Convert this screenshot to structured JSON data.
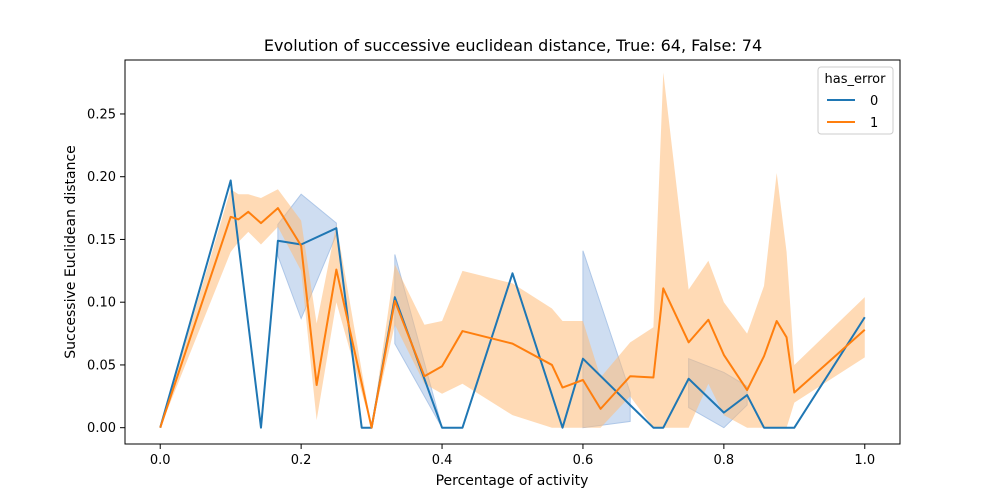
{
  "chart_data": {
    "type": "line",
    "title": "Evolution of successive euclidean distance, True: 64, False: 74",
    "xlabel": "Percentage of activity",
    "ylabel": "Successive Euclidean distance",
    "xlim": [
      -0.05,
      1.05
    ],
    "ylim": [
      -0.013,
      0.293
    ],
    "xticks": [
      0.0,
      0.2,
      0.4,
      0.6,
      0.8,
      1.0
    ],
    "xtick_labels": [
      "0.0",
      "0.2",
      "0.4",
      "0.6",
      "0.8",
      "1.0"
    ],
    "yticks": [
      0.0,
      0.05,
      0.1,
      0.15,
      0.2,
      0.25
    ],
    "ytick_labels": [
      "0.00",
      "0.05",
      "0.10",
      "0.15",
      "0.20",
      "0.25"
    ],
    "grid": false,
    "legend": {
      "title": "has_error",
      "placement": "top-right",
      "entries": [
        "0",
        "1"
      ]
    },
    "series": [
      {
        "name": "0",
        "color": "#1f77b4",
        "band_color": "#aec7e8",
        "x": [
          0.0,
          0.1,
          0.143,
          0.167,
          0.2,
          0.25,
          0.286,
          0.3,
          0.333,
          0.4,
          0.429,
          0.5,
          0.571,
          0.6,
          0.667,
          0.7,
          0.714,
          0.75,
          0.8,
          0.833,
          0.857,
          0.9,
          1.0
        ],
        "y": [
          0.0,
          0.197,
          0.0,
          0.149,
          0.146,
          0.159,
          0.0,
          0.0,
          0.104,
          0.0,
          0.0,
          0.123,
          0.0,
          0.055,
          0.018,
          0.0,
          0.0,
          0.039,
          0.012,
          0.026,
          0.0,
          0.0,
          0.088
        ],
        "ci_segments": [
          {
            "x": [
              0.167,
              0.2,
              0.25
            ],
            "lower": [
              0.137,
              0.087,
              0.154
            ],
            "upper": [
              0.162,
              0.186,
              0.163
            ]
          },
          {
            "x": [
              0.333,
              0.4
            ],
            "lower": [
              0.067,
              0.0
            ],
            "upper": [
              0.138,
              0.0
            ]
          },
          {
            "x": [
              0.6,
              0.667
            ],
            "lower": [
              0.0,
              0.005
            ],
            "upper": [
              0.141,
              0.028
            ]
          },
          {
            "x": [
              0.75,
              0.8,
              0.833
            ],
            "lower": [
              0.016,
              0.0,
              0.018
            ],
            "upper": [
              0.055,
              0.044,
              0.033
            ]
          }
        ]
      },
      {
        "name": "1",
        "color": "#ff7f0e",
        "band_color": "#ffbb78",
        "x": [
          0.0,
          0.1,
          0.111,
          0.125,
          0.143,
          0.167,
          0.2,
          0.222,
          0.25,
          0.3,
          0.333,
          0.375,
          0.4,
          0.429,
          0.5,
          0.556,
          0.571,
          0.6,
          0.625,
          0.667,
          0.7,
          0.714,
          0.75,
          0.778,
          0.8,
          0.833,
          0.857,
          0.875,
          0.889,
          0.9,
          1.0
        ],
        "y": [
          0.0,
          0.168,
          0.166,
          0.172,
          0.163,
          0.175,
          0.145,
          0.034,
          0.126,
          0.0,
          0.101,
          0.041,
          0.049,
          0.077,
          0.067,
          0.05,
          0.032,
          0.038,
          0.015,
          0.041,
          0.04,
          0.111,
          0.068,
          0.086,
          0.058,
          0.03,
          0.057,
          0.085,
          0.072,
          0.028,
          0.078
        ],
        "lower": [
          0.0,
          0.14,
          0.148,
          0.156,
          0.146,
          0.16,
          0.125,
          0.006,
          0.1,
          0.0,
          0.082,
          0.035,
          0.027,
          0.035,
          0.01,
          0.0,
          0.0,
          0.0,
          0.0,
          0.025,
          0.0,
          0.0,
          0.0,
          0.035,
          0.01,
          0.0,
          0.0,
          0.0,
          0.0,
          0.02,
          0.056
        ],
        "upper": [
          0.0,
          0.19,
          0.186,
          0.186,
          0.183,
          0.19,
          0.165,
          0.083,
          0.162,
          0.0,
          0.13,
          0.082,
          0.085,
          0.125,
          0.115,
          0.095,
          0.085,
          0.085,
          0.04,
          0.068,
          0.08,
          0.283,
          0.11,
          0.133,
          0.1,
          0.075,
          0.113,
          0.203,
          0.14,
          0.05,
          0.104
        ]
      }
    ]
  }
}
